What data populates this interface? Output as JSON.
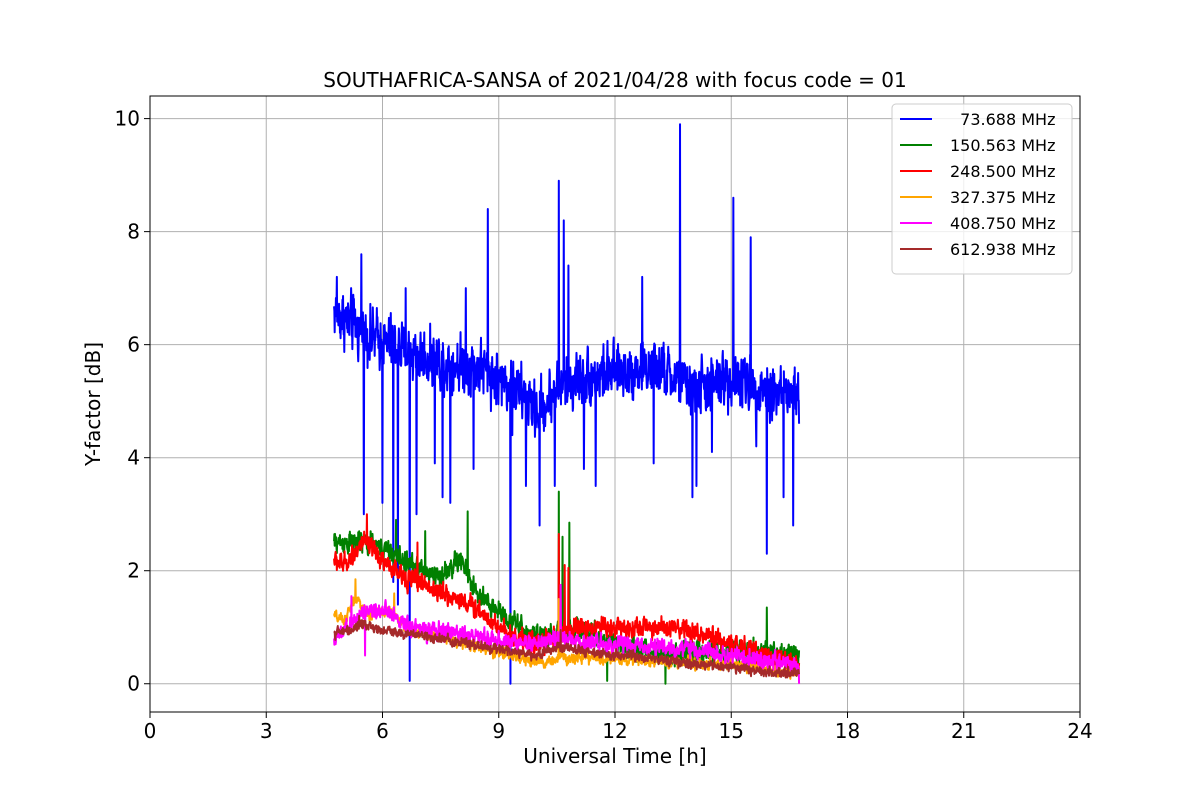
{
  "chart_data": {
    "type": "line",
    "title": "SOUTHAFRICA-SANSA of 2021/04/28 with focus code = 01",
    "xlabel": "Universal Time [h]",
    "ylabel": "Y-factor [dB]",
    "xlim": [
      0,
      24
    ],
    "ylim": [
      -0.5,
      10.4
    ],
    "xticks": [
      0,
      3,
      6,
      9,
      12,
      15,
      18,
      21,
      24
    ],
    "yticks": [
      0,
      2,
      4,
      6,
      8,
      10
    ],
    "grid": true,
    "legend_position": "top-right",
    "series": [
      {
        "name": "73.688 MHz",
        "legend_label": "  73.688 MHz",
        "color": "#0000ff",
        "x_start": 4.75,
        "x_end": 16.75,
        "trend": [
          [
            4.75,
            6.6
          ],
          [
            5.5,
            6.2
          ],
          [
            6.5,
            5.9
          ],
          [
            7.5,
            5.7
          ],
          [
            8.5,
            5.6
          ],
          [
            9.0,
            5.4
          ],
          [
            9.5,
            5.2
          ],
          [
            10.0,
            4.8
          ],
          [
            10.5,
            5.2
          ],
          [
            11.0,
            5.4
          ],
          [
            12.0,
            5.5
          ],
          [
            13.0,
            5.6
          ],
          [
            14.0,
            5.2
          ],
          [
            15.0,
            5.4
          ],
          [
            16.0,
            5.2
          ],
          [
            16.75,
            5.1
          ]
        ],
        "noise": 0.35,
        "spikes": [
          [
            4.82,
            7.2
          ],
          [
            5.45,
            7.6
          ],
          [
            5.52,
            3.0
          ],
          [
            6.0,
            3.2
          ],
          [
            6.28,
            1.8
          ],
          [
            6.4,
            1.4
          ],
          [
            6.6,
            7.0
          ],
          [
            6.7,
            0.05
          ],
          [
            6.88,
            3.0
          ],
          [
            7.35,
            3.9
          ],
          [
            7.55,
            3.3
          ],
          [
            7.75,
            3.2
          ],
          [
            8.15,
            7.0
          ],
          [
            8.35,
            3.8
          ],
          [
            8.72,
            8.4
          ],
          [
            9.3,
            0.0
          ],
          [
            9.35,
            4.4
          ],
          [
            9.7,
            3.5
          ],
          [
            10.05,
            2.8
          ],
          [
            10.45,
            3.5
          ],
          [
            10.55,
            8.9
          ],
          [
            10.68,
            8.2
          ],
          [
            10.8,
            7.4
          ],
          [
            11.2,
            3.8
          ],
          [
            11.5,
            3.5
          ],
          [
            12.7,
            7.2
          ],
          [
            13.0,
            3.9
          ],
          [
            13.68,
            9.9
          ],
          [
            14.0,
            3.3
          ],
          [
            14.1,
            3.5
          ],
          [
            14.5,
            4.1
          ],
          [
            15.05,
            8.6
          ],
          [
            15.5,
            7.9
          ],
          [
            15.65,
            4.2
          ],
          [
            15.92,
            2.3
          ],
          [
            16.35,
            3.3
          ],
          [
            16.6,
            2.8
          ],
          [
            16.75,
            4.6
          ]
        ]
      },
      {
        "name": "150.563 MHz",
        "legend_label": "150.563 MHz",
        "color": "#008000",
        "x_start": 4.75,
        "x_end": 16.75,
        "trend": [
          [
            4.75,
            2.5
          ],
          [
            5.5,
            2.5
          ],
          [
            6.0,
            2.4
          ],
          [
            6.5,
            2.2
          ],
          [
            7.0,
            2.0
          ],
          [
            7.5,
            1.9
          ],
          [
            8.0,
            2.2
          ],
          [
            8.5,
            1.5
          ],
          [
            9.0,
            1.3
          ],
          [
            9.5,
            1.0
          ],
          [
            10.0,
            0.8
          ],
          [
            10.5,
            0.9
          ],
          [
            11.0,
            1.0
          ],
          [
            12.0,
            0.7
          ],
          [
            13.0,
            0.55
          ],
          [
            14.0,
            0.55
          ],
          [
            15.0,
            0.55
          ],
          [
            16.0,
            0.55
          ],
          [
            16.75,
            0.5
          ]
        ],
        "noise": 0.14,
        "spikes": [
          [
            8.2,
            3.05
          ],
          [
            6.35,
            2.9
          ],
          [
            7.1,
            2.7
          ],
          [
            10.55,
            3.4
          ],
          [
            10.65,
            2.6
          ],
          [
            10.82,
            2.85
          ],
          [
            15.92,
            1.35
          ],
          [
            13.3,
            0.0
          ],
          [
            11.8,
            0.05
          ]
        ]
      },
      {
        "name": "248.500 MHz",
        "legend_label": "248.500 MHz",
        "color": "#ff0000",
        "x_start": 4.75,
        "x_end": 16.75,
        "trend": [
          [
            4.75,
            2.2
          ],
          [
            5.0,
            2.1
          ],
          [
            5.5,
            2.5
          ],
          [
            6.0,
            2.2
          ],
          [
            6.5,
            1.9
          ],
          [
            7.0,
            1.8
          ],
          [
            7.5,
            1.6
          ],
          [
            8.0,
            1.5
          ],
          [
            8.5,
            1.3
          ],
          [
            9.0,
            1.0
          ],
          [
            9.5,
            0.8
          ],
          [
            10.0,
            0.7
          ],
          [
            10.5,
            0.8
          ],
          [
            11.0,
            1.0
          ],
          [
            12.0,
            1.0
          ],
          [
            13.0,
            1.0
          ],
          [
            14.0,
            0.9
          ],
          [
            15.0,
            0.7
          ],
          [
            16.0,
            0.5
          ],
          [
            16.75,
            0.3
          ]
        ],
        "noise": 0.13,
        "spikes": [
          [
            5.6,
            3.0
          ],
          [
            6.9,
            2.5
          ],
          [
            10.55,
            2.65
          ],
          [
            10.7,
            2.1
          ],
          [
            10.8,
            2.05
          ]
        ]
      },
      {
        "name": "327.375 MHz",
        "legend_label": "327.375 MHz",
        "color": "#ffa500",
        "x_start": 4.75,
        "x_end": 16.75,
        "trend": [
          [
            4.75,
            1.2
          ],
          [
            5.0,
            1.1
          ],
          [
            5.3,
            1.5
          ],
          [
            5.7,
            1.2
          ],
          [
            6.2,
            1.3
          ],
          [
            6.7,
            0.95
          ],
          [
            7.5,
            0.85
          ],
          [
            8.5,
            0.65
          ],
          [
            9.5,
            0.45
          ],
          [
            10.2,
            0.35
          ],
          [
            10.6,
            0.5
          ],
          [
            11.0,
            0.45
          ],
          [
            12.0,
            0.45
          ],
          [
            13.0,
            0.4
          ],
          [
            14.0,
            0.35
          ],
          [
            15.0,
            0.35
          ],
          [
            16.0,
            0.25
          ],
          [
            16.75,
            0.2
          ]
        ],
        "noise": 0.07,
        "spikes": [
          [
            5.3,
            1.85
          ],
          [
            6.3,
            1.6
          ],
          [
            10.55,
            1.5
          ]
        ]
      },
      {
        "name": "408.750 MHz",
        "legend_label": "408.750 MHz",
        "color": "#ff00ff",
        "x_start": 4.75,
        "x_end": 16.75,
        "trend": [
          [
            4.75,
            0.8
          ],
          [
            5.0,
            0.9
          ],
          [
            5.5,
            1.3
          ],
          [
            6.0,
            1.3
          ],
          [
            6.5,
            1.1
          ],
          [
            7.0,
            0.95
          ],
          [
            8.0,
            0.9
          ],
          [
            9.0,
            0.75
          ],
          [
            9.5,
            0.75
          ],
          [
            10.0,
            0.7
          ],
          [
            10.5,
            0.8
          ],
          [
            11.0,
            0.75
          ],
          [
            12.0,
            0.7
          ],
          [
            13.0,
            0.65
          ],
          [
            14.0,
            0.6
          ],
          [
            15.0,
            0.5
          ],
          [
            16.0,
            0.4
          ],
          [
            16.75,
            0.3
          ]
        ],
        "noise": 0.11,
        "spikes": [
          [
            5.55,
            0.5
          ],
          [
            5.2,
            1.55
          ],
          [
            10.6,
            1.75
          ],
          [
            16.75,
            0.0
          ]
        ]
      },
      {
        "name": "612.938 MHz",
        "legend_label": "612.938 MHz",
        "color": "#a52a2a",
        "x_start": 4.75,
        "x_end": 16.75,
        "trend": [
          [
            4.75,
            0.9
          ],
          [
            5.2,
            0.95
          ],
          [
            5.5,
            1.05
          ],
          [
            6.0,
            0.95
          ],
          [
            6.5,
            0.9
          ],
          [
            7.0,
            0.85
          ],
          [
            8.0,
            0.75
          ],
          [
            9.0,
            0.6
          ],
          [
            9.5,
            0.55
          ],
          [
            10.0,
            0.5
          ],
          [
            10.5,
            0.65
          ],
          [
            11.0,
            0.6
          ],
          [
            12.0,
            0.5
          ],
          [
            13.0,
            0.45
          ],
          [
            14.0,
            0.35
          ],
          [
            15.0,
            0.3
          ],
          [
            16.0,
            0.2
          ],
          [
            16.75,
            0.2
          ]
        ],
        "noise": 0.06,
        "spikes": [
          [
            5.4,
            1.2
          ],
          [
            10.6,
            0.95
          ]
        ]
      }
    ]
  }
}
